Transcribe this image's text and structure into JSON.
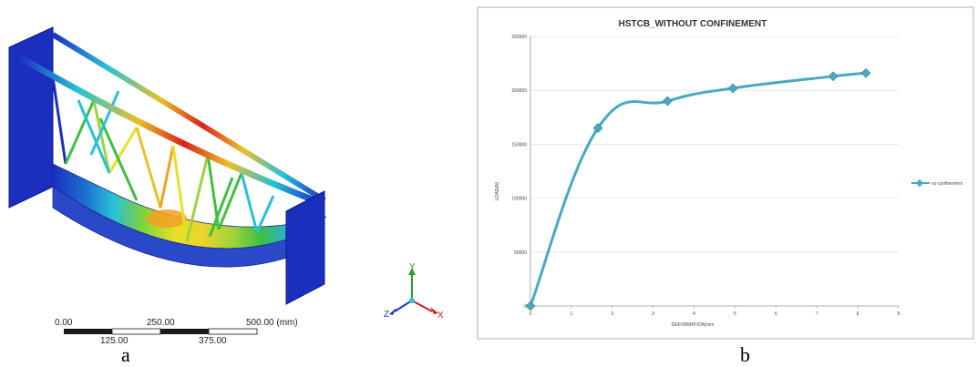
{
  "panel_a": {
    "caption": "a",
    "scale_bar": {
      "top_labels": [
        "0.00",
        "250.00",
        "500.00 (mm)"
      ],
      "bottom_labels": [
        "125.00",
        "375.00"
      ]
    },
    "axis_triad": {
      "y": "Y",
      "z": "Z",
      "x": "X"
    },
    "colors": {
      "blue": "#1b2fbf",
      "cyan": "#27c0d8",
      "green": "#3fbf3f",
      "yellow": "#e8e02a",
      "orange": "#f2a024",
      "red": "#d8241c"
    }
  },
  "panel_b": {
    "caption": "b",
    "legend": "no confinement",
    "line_color": "#4aa9c0"
  },
  "chart_data": {
    "type": "line",
    "title": "HSTCB_WITHOUT CONFINEMENT",
    "xlabel": "DEFORMATION(mm",
    "ylabel": "LOAD(N)",
    "xlim": [
      0,
      9
    ],
    "ylim": [
      0,
      250000
    ],
    "x_ticks": [
      "0",
      "1",
      "2",
      "3",
      "4",
      "5",
      "6",
      "7",
      "8",
      "9"
    ],
    "y_ticks": [
      "0",
      "50000",
      "100000",
      "150000",
      "200000",
      "250000"
    ],
    "grid": "horizontal",
    "legend_position": "right",
    "series": [
      {
        "name": "no confinement",
        "x": [
          0,
          1.65,
          3.35,
          4.95,
          7.4,
          8.2
        ],
        "y": [
          0,
          165000,
          190000,
          202000,
          213000,
          216000
        ]
      }
    ]
  }
}
